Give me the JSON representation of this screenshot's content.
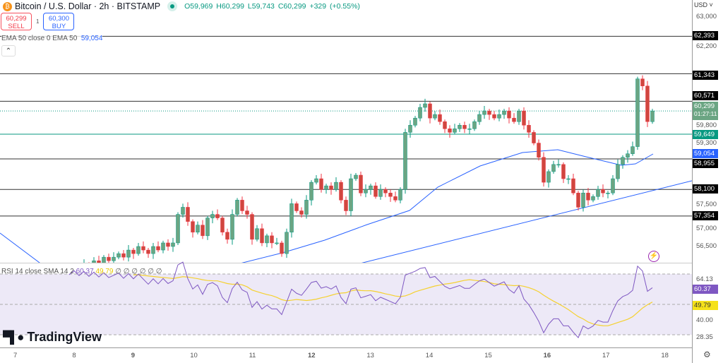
{
  "header": {
    "symbol_title": "Bitcoin / U.S. Dollar · 2h · BITSTAMP",
    "open": "O59,969",
    "high": "H60,299",
    "low": "L59,743",
    "close": "C60,299",
    "change": "+329 (+0.55%)",
    "coin_icon": "bitcoin-icon"
  },
  "trade": {
    "sell_price": "60,299",
    "sell_label": "SELL",
    "spread": "1",
    "buy_price": "60,300",
    "buy_label": "BUY"
  },
  "ema": {
    "label": "EMA 50 close 0 EMA 50",
    "value": "59,054"
  },
  "rsi": {
    "label": "RSI 14 close SMA 14 2",
    "rsi_value": "60.37",
    "sma_value": "49.79",
    "extra": "∅ ∅ ∅ ∅ ∅ ∅"
  },
  "price_axis": {
    "currency": "USD",
    "ticks": [
      "63,000",
      "62,200",
      "59,800",
      "59,300",
      "57,500",
      "57,000",
      "56,500"
    ],
    "levels": [
      "62,393",
      "61,343",
      "60,571",
      "59,649",
      "58,955",
      "58,100",
      "57,354"
    ],
    "current_price": "60,299",
    "countdown": "01:27:11",
    "ema_tag": "59,054"
  },
  "rsi_axis": {
    "ticks": [
      "64.13",
      "40.00",
      "28.35"
    ],
    "rsi_tag": "60.37",
    "sma_tag": "49.79"
  },
  "time_axis": [
    "7",
    "8",
    "9",
    "10",
    "11",
    "12",
    "13",
    "14",
    "15",
    "16",
    "17",
    "18"
  ],
  "brand": "TradingView",
  "colors": {
    "up": "#089981",
    "down": "#f23645",
    "ema": "#2962ff",
    "rsi": "#7e57c2",
    "rsi_sma": "#f5d130",
    "level_green": "#089981"
  },
  "chart_data": {
    "type": "candlestick",
    "interval": "2h",
    "closes_hundreds": [
      548,
      550,
      549,
      552,
      551,
      553,
      552,
      555,
      554,
      556,
      555,
      557,
      556,
      558,
      557,
      559,
      558,
      560,
      559,
      561,
      560,
      562,
      561,
      562,
      563,
      562,
      564,
      563,
      565,
      564,
      563,
      565,
      564,
      566,
      565,
      566,
      574,
      576,
      572,
      569,
      571,
      568,
      573,
      574,
      573,
      569,
      567,
      574,
      578,
      575,
      574,
      567,
      570,
      566,
      568,
      566,
      566,
      563,
      569,
      577,
      575,
      574,
      578,
      583,
      584,
      581,
      582,
      581,
      583,
      578,
      575,
      584,
      585,
      580,
      581,
      582,
      579,
      581,
      580,
      579,
      578,
      581,
      597,
      599,
      601,
      604,
      605,
      601,
      602,
      600,
      598,
      597,
      598,
      599,
      598,
      598,
      600,
      602,
      603,
      602,
      601,
      602,
      603,
      601,
      600,
      603,
      599,
      597,
      594,
      590,
      583,
      586,
      588,
      588,
      584,
      584,
      580,
      576,
      580,
      578,
      579,
      581,
      580,
      580,
      584,
      588,
      590,
      591,
      593,
      612,
      610,
      600,
      603
    ]
  }
}
